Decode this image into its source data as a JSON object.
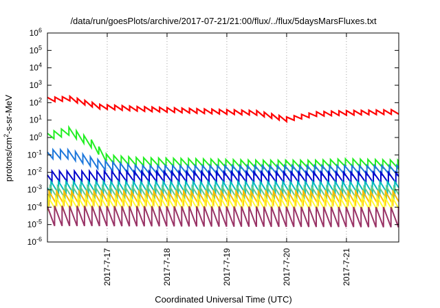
{
  "chart_data": {
    "type": "line",
    "title": "/data/run/goesPlots/archive/2017-07-21/21:00/flux/../flux/5daysMarsFluxes.txt",
    "xlabel": "Coordinated Universal Time (UTC)",
    "ylabel": {
      "pre": "protons/cm",
      "sup": "2",
      "post": "-s-sr-MeV"
    },
    "y_scale": "log",
    "ylim": [
      1e-06,
      1000000.0
    ],
    "xlim": [
      "2017-07-16T00:00",
      "2017-07-21T21:00"
    ],
    "y_ticks": [
      {
        "base": "10",
        "exp": "-6",
        "value": 1e-06
      },
      {
        "base": "10",
        "exp": "-5",
        "value": 1e-05
      },
      {
        "base": "10",
        "exp": "-4",
        "value": 0.0001
      },
      {
        "base": "10",
        "exp": "-3",
        "value": 0.001
      },
      {
        "base": "10",
        "exp": "-2",
        "value": 0.01
      },
      {
        "base": "10",
        "exp": "-1",
        "value": 0.1
      },
      {
        "base": "10",
        "exp": "0",
        "value": 1
      },
      {
        "base": "10",
        "exp": "1",
        "value": 10
      },
      {
        "base": "10",
        "exp": "2",
        "value": 100
      },
      {
        "base": "10",
        "exp": "3",
        "value": 1000
      },
      {
        "base": "10",
        "exp": "4",
        "value": 10000
      },
      {
        "base": "10",
        "exp": "5",
        "value": 100000
      },
      {
        "base": "10",
        "exp": "6",
        "value": 1000000
      }
    ],
    "x_ticks": [
      {
        "label": "2017-7-17",
        "value": "2017-07-17T00:00"
      },
      {
        "label": "2017-7-18",
        "value": "2017-07-18T00:00"
      },
      {
        "label": "2017-7-19",
        "value": "2017-07-19T00:00"
      },
      {
        "label": "2017-7-20",
        "value": "2017-07-20T00:00"
      },
      {
        "label": "2017-7-21",
        "value": "2017-07-21T00:00"
      }
    ],
    "grid": true,
    "sawtooth_period_hours": 3,
    "series": [
      {
        "color": "#ff0000",
        "width": 2.2,
        "envelope": [
          [
            "2017-07-16T00:00",
            200
          ],
          [
            "2017-07-16T09:00",
            230
          ],
          [
            "2017-07-16T21:00",
            80
          ],
          [
            "2017-07-17T12:00",
            60
          ],
          [
            "2017-07-18T12:00",
            45
          ],
          [
            "2017-07-19T12:00",
            35
          ],
          [
            "2017-07-20T00:00",
            15
          ],
          [
            "2017-07-20T12:00",
            30
          ],
          [
            "2017-07-21T00:00",
            35
          ],
          [
            "2017-07-21T21:00",
            40
          ]
        ],
        "trough_ratio": 0.55
      },
      {
        "color": "#22ee22",
        "width": 2.0,
        "envelope": [
          [
            "2017-07-16T00:00",
            2
          ],
          [
            "2017-07-16T09:00",
            4
          ],
          [
            "2017-07-16T18:00",
            0.7
          ],
          [
            "2017-07-17T00:00",
            0.1
          ],
          [
            "2017-07-17T12:00",
            0.07
          ],
          [
            "2017-07-18T12:00",
            0.06
          ],
          [
            "2017-07-19T12:00",
            0.05
          ],
          [
            "2017-07-20T12:00",
            0.05
          ],
          [
            "2017-07-21T00:00",
            0.06
          ],
          [
            "2017-07-21T21:00",
            0.05
          ]
        ],
        "trough_ratio": 0.35
      },
      {
        "color": "#1e78dc",
        "width": 2.0,
        "envelope": [
          [
            "2017-07-16T00:00",
            0.2
          ],
          [
            "2017-07-16T09:00",
            0.2
          ],
          [
            "2017-07-16T21:00",
            0.05
          ],
          [
            "2017-07-17T12:00",
            0.025
          ],
          [
            "2017-07-21T21:00",
            0.025
          ]
        ],
        "trough_ratio": 0.3
      },
      {
        "color": "#0000cc",
        "width": 2.0,
        "envelope": [
          [
            "2017-07-16T00:00",
            0.012
          ],
          [
            "2017-07-21T21:00",
            0.01
          ]
        ],
        "trough_ratio": 0.25
      },
      {
        "color": "#00bbbb",
        "width": 2.0,
        "envelope": [
          [
            "2017-07-16T00:00",
            0.003
          ],
          [
            "2017-07-21T21:00",
            0.003
          ]
        ],
        "trough_ratio": 0.2
      },
      {
        "color": "#66cc88",
        "width": 2.0,
        "envelope": [
          [
            "2017-07-16T00:00",
            0.0016
          ],
          [
            "2017-07-21T21:00",
            0.0015
          ]
        ],
        "trough_ratio": 0.2
      },
      {
        "color": "#ffbb00",
        "width": 2.0,
        "envelope": [
          [
            "2017-07-16T00:00",
            0.0008
          ],
          [
            "2017-07-21T21:00",
            0.0008
          ]
        ],
        "trough_ratio": 0.18
      },
      {
        "color": "#ffff33",
        "width": 2.0,
        "envelope": [
          [
            "2017-07-16T00:00",
            0.0004
          ],
          [
            "2017-07-21T21:00",
            0.0004
          ]
        ],
        "trough_ratio": 0.18
      },
      {
        "color": "#993366",
        "width": 2.0,
        "envelope": [
          [
            "2017-07-16T00:00",
            0.00012
          ],
          [
            "2017-07-21T21:00",
            0.0001
          ]
        ],
        "trough_ratio": 0.07
      }
    ]
  }
}
